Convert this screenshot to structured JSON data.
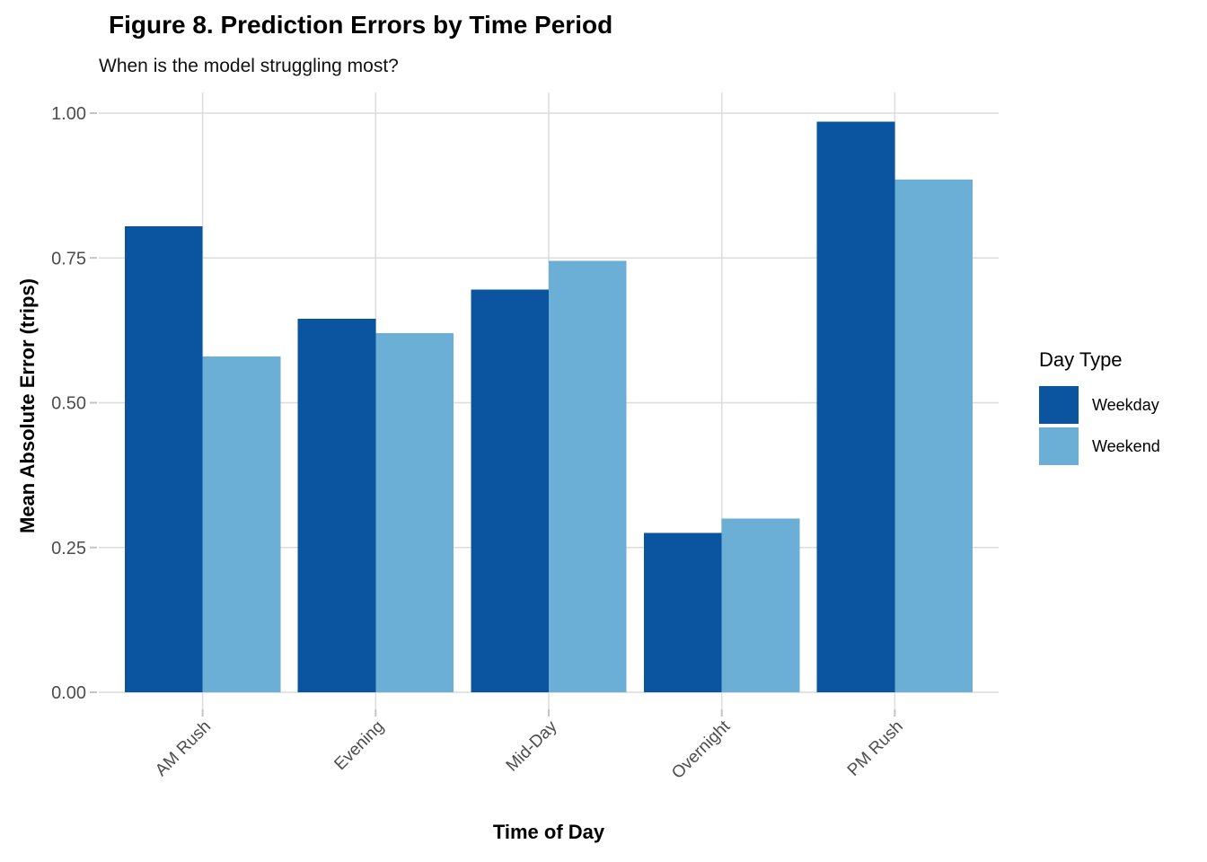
{
  "chart_data": {
    "type": "bar",
    "title": "Figure 8. Prediction Errors by Time Period",
    "subtitle": "When is the model struggling most?",
    "xlabel": "Time of Day",
    "ylabel": "Mean Absolute Error (trips)",
    "categories": [
      "AM Rush",
      "Evening",
      "Mid-Day",
      "Overnight",
      "PM Rush"
    ],
    "series": [
      {
        "name": "Weekday",
        "color": "#0a54a0",
        "values": [
          0.805,
          0.645,
          0.695,
          0.275,
          0.985
        ]
      },
      {
        "name": "Weekend",
        "color": "#6baed6",
        "values": [
          0.58,
          0.62,
          0.745,
          0.3,
          0.885
        ]
      }
    ],
    "legend_title": "Day Type",
    "legend_position": "right",
    "ylim": [
      0,
      1.0
    ],
    "y_axis": {
      "ticks": [
        {
          "value": 0.0,
          "label": "0.00"
        },
        {
          "value": 0.25,
          "label": "0.25"
        },
        {
          "value": 0.5,
          "label": "0.50"
        },
        {
          "value": 0.75,
          "label": "0.75"
        },
        {
          "value": 1.0,
          "label": "1.00"
        }
      ]
    },
    "grid": "major horizontal at y ticks, major vertical at category centers",
    "grid_color": "#dcdcdc",
    "tick_color": "#c4c4c4",
    "background_color": "#ffffff"
  }
}
